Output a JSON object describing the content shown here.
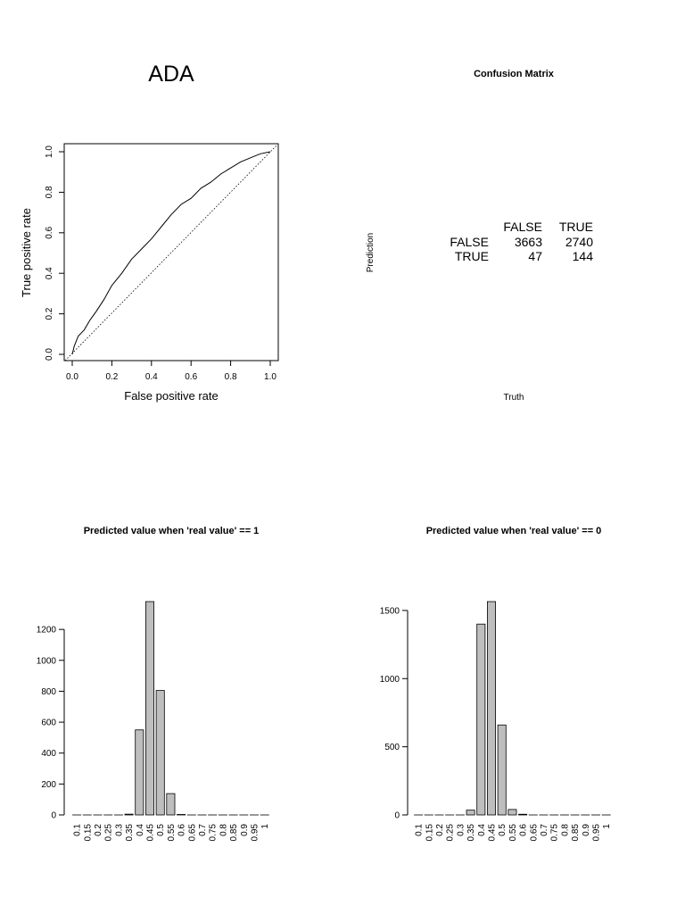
{
  "roc": {
    "title": "ADA",
    "xlabel": "False positive rate",
    "ylabel": "True positive rate",
    "ticks": [
      "0.0",
      "0.2",
      "0.4",
      "0.6",
      "0.8",
      "1.0"
    ]
  },
  "confusion": {
    "title": "Confusion Matrix",
    "xlabel": "Truth",
    "ylabel": "Prediction",
    "col_headers": [
      "FALSE",
      "TRUE"
    ],
    "row_headers": [
      "FALSE",
      "TRUE"
    ],
    "cells": [
      [
        "3663",
        "2740"
      ],
      [
        "47",
        "144"
      ]
    ]
  },
  "chart_data": [
    {
      "type": "line",
      "title": "ADA",
      "xlabel": "False positive rate",
      "ylabel": "True positive rate",
      "xlim": [
        0,
        1
      ],
      "ylim": [
        0,
        1
      ],
      "series": [
        {
          "x": [
            0,
            0.01,
            0.03,
            0.06,
            0.09,
            0.12,
            0.16,
            0.2,
            0.25,
            0.3,
            0.35,
            0.4,
            0.45,
            0.5,
            0.55,
            0.6,
            0.65,
            0.7,
            0.75,
            0.8,
            0.85,
            0.9,
            0.95,
            1.0
          ],
          "y": [
            0,
            0.04,
            0.09,
            0.12,
            0.17,
            0.21,
            0.27,
            0.34,
            0.4,
            0.47,
            0.52,
            0.57,
            0.63,
            0.69,
            0.74,
            0.77,
            0.82,
            0.85,
            0.89,
            0.92,
            0.95,
            0.97,
            0.99,
            1.0
          ]
        },
        {
          "x": [
            0,
            1
          ],
          "y": [
            0,
            1
          ]
        }
      ]
    },
    {
      "type": "bar",
      "title": "Predicted value when 'real value' == 1",
      "categories": [
        "0.1",
        "0.15",
        "0.2",
        "0.25",
        "0.3",
        "0.35",
        "0.4",
        "0.45",
        "0.5",
        "0.55",
        "0.6",
        "0.65",
        "0.7",
        "0.75",
        "0.8",
        "0.85",
        "0.9",
        "0.95",
        "1"
      ],
      "values": [
        0,
        0,
        0,
        0,
        0,
        5,
        550,
        1380,
        805,
        138,
        3,
        0,
        0,
        0,
        0,
        0,
        0,
        0,
        0
      ],
      "ylim": [
        0,
        1380
      ],
      "yticks": [
        "0",
        "200",
        "400",
        "600",
        "800",
        "1000",
        "1200"
      ]
    },
    {
      "type": "bar",
      "title": "Predicted value when 'real value' == 0",
      "categories": [
        "0.1",
        "0.15",
        "0.2",
        "0.25",
        "0.3",
        "0.35",
        "0.4",
        "0.45",
        "0.5",
        "0.55",
        "0.6",
        "0.65",
        "0.7",
        "0.75",
        "0.8",
        "0.85",
        "0.9",
        "0.95",
        "1"
      ],
      "values": [
        0,
        0,
        0,
        0,
        0,
        35,
        1400,
        1565,
        660,
        40,
        5,
        0,
        0,
        0,
        0,
        0,
        0,
        0,
        0
      ],
      "ylim": [
        0,
        1565
      ],
      "yticks": [
        "0",
        "500",
        "1000",
        "1500"
      ]
    }
  ]
}
